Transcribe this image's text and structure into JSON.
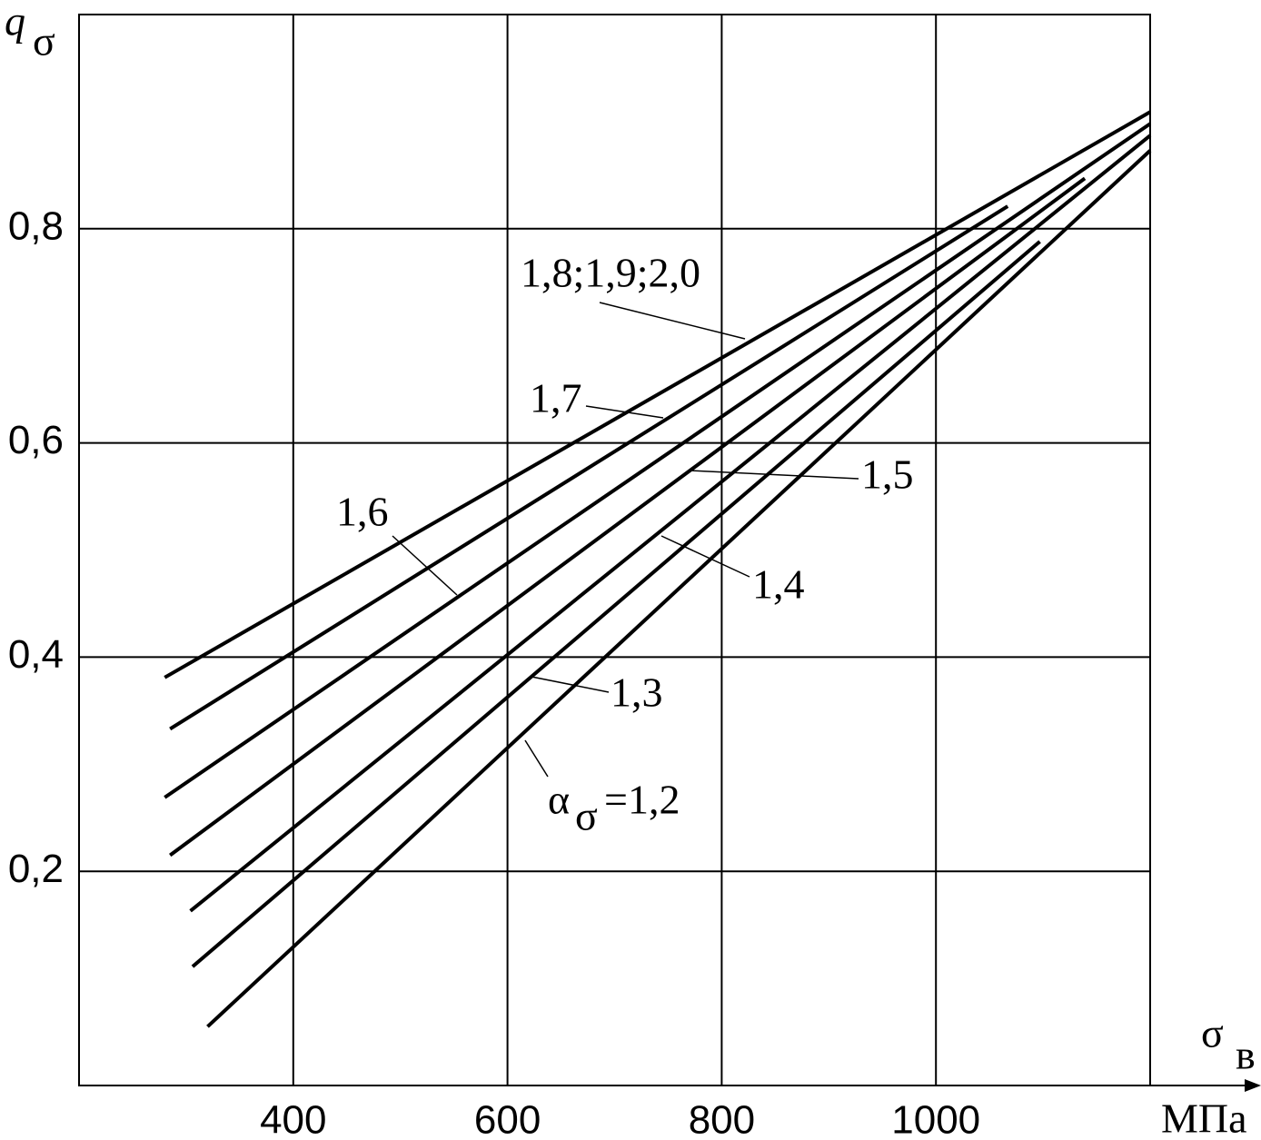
{
  "chart_data": {
    "type": "line",
    "y_label": "q",
    "y_label_sub": "σ",
    "x_label": "σ",
    "x_label_sub": "в",
    "x_unit": "МПа",
    "xlim": [
      200,
      1200
    ],
    "xticks": [
      400,
      600,
      800,
      1000
    ],
    "ylim": [
      0,
      1
    ],
    "yticks": [
      {
        "value": 0.2,
        "label": "0,2"
      },
      {
        "value": 0.4,
        "label": "0,4"
      },
      {
        "value": 0.6,
        "label": "0,6"
      },
      {
        "value": 0.8,
        "label": "0,8"
      }
    ],
    "grid": true,
    "color": "#000000",
    "series": [
      {
        "name": "1,8;1,9;2,0",
        "x": [
          280,
          1200
        ],
        "values": [
          0.381,
          0.909
        ]
      },
      {
        "name": "1,7",
        "x": [
          285,
          1067
        ],
        "values": [
          0.333,
          0.821
        ]
      },
      {
        "name": "1,6",
        "x": [
          280,
          1200
        ],
        "values": [
          0.269,
          0.898
        ]
      },
      {
        "name": "1,5",
        "x": [
          285,
          1139
        ],
        "values": [
          0.215,
          0.847
        ]
      },
      {
        "name": "1,4",
        "x": [
          304,
          1200
        ],
        "values": [
          0.163,
          0.887
        ]
      },
      {
        "name": "1,3",
        "x": [
          306,
          1097
        ],
        "values": [
          0.111,
          0.788
        ]
      },
      {
        "name": "=1,2",
        "name_prefix": "α",
        "name_prefix_sub": "σ",
        "x": [
          320,
          1200
        ],
        "values": [
          0.055,
          0.873
        ]
      }
    ]
  }
}
